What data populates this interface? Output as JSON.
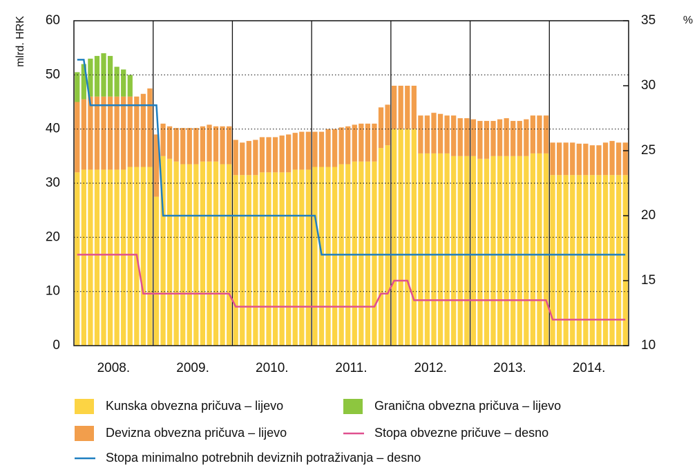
{
  "chart_data": {
    "type": "bar",
    "ylabel": "mlrd. HRK",
    "y2label": "%",
    "categories": [
      null,
      null,
      null,
      null,
      null,
      null,
      "2008.",
      null,
      null,
      null,
      null,
      null,
      null,
      null,
      null,
      null,
      null,
      null,
      "2009.",
      null,
      null,
      null,
      null,
      null,
      null,
      null,
      null,
      null,
      null,
      null,
      "2010.",
      null,
      null,
      null,
      null,
      null,
      null,
      null,
      null,
      null,
      null,
      null,
      "2011.",
      null,
      null,
      null,
      null,
      null,
      null,
      null,
      null,
      null,
      null,
      null,
      "2012.",
      null,
      null,
      null,
      null,
      null,
      null,
      null,
      null,
      null,
      null,
      null,
      "2013.",
      null,
      null,
      null,
      null,
      null,
      null,
      null,
      null,
      null,
      null,
      null,
      "2014.",
      null,
      null,
      null,
      null,
      null
    ],
    "ylim": [
      0,
      60
    ],
    "yticks": [
      0,
      10,
      20,
      30,
      40,
      50,
      60
    ],
    "y2lim": [
      10,
      35
    ],
    "y2ticks": [
      10,
      15,
      20,
      25,
      30,
      35
    ],
    "grid": true,
    "series": [
      {
        "name": "Kunska obvezna pričuva – lijevo",
        "color": "#fcd444",
        "kind": "bar",
        "values": [
          32,
          32.5,
          32.5,
          32.5,
          32.5,
          32.5,
          32.5,
          32.5,
          33,
          33,
          33,
          33,
          27.5,
          35,
          34.5,
          34,
          33.5,
          33.5,
          33.5,
          34,
          34,
          34,
          33.5,
          33.5,
          31.5,
          31.5,
          31.5,
          31.5,
          32,
          32,
          32,
          32,
          32,
          32.5,
          32.5,
          32.5,
          33,
          33,
          33,
          33,
          33.5,
          33.5,
          34,
          34,
          34,
          34,
          36.5,
          37,
          40,
          40,
          40,
          40,
          35.5,
          35.5,
          35.5,
          35.5,
          35.5,
          35,
          35,
          35,
          35,
          34.5,
          34.5,
          35,
          35,
          35,
          35,
          35,
          35,
          35.5,
          35.5,
          35.5,
          31.5,
          31.5,
          31.5,
          31.5,
          31.5,
          31.5,
          31.5,
          31.5,
          31.5,
          31.5,
          31.5,
          31.5
        ]
      },
      {
        "name": "Devizna obvezna pričuva  – lijevo",
        "color": "#f29e4c",
        "kind": "bar",
        "values": [
          13,
          13,
          13.5,
          13.5,
          13.5,
          13.5,
          13.5,
          13.5,
          13,
          13,
          13.5,
          14.5,
          11.5,
          6,
          6,
          6.2,
          6.7,
          6.7,
          6.7,
          6.5,
          6.8,
          6.5,
          7,
          7,
          6.5,
          6,
          6.3,
          6.5,
          6.5,
          6.5,
          6.5,
          6.8,
          7,
          6.8,
          7,
          7,
          6.5,
          6.5,
          7,
          7,
          6.8,
          7,
          6.8,
          7,
          7,
          7,
          7.5,
          7.5,
          8,
          8,
          8,
          8,
          7,
          7,
          7.5,
          7.3,
          7,
          7.5,
          7,
          7,
          6.8,
          7,
          7,
          6.5,
          6.8,
          7,
          6.5,
          6.5,
          6.8,
          7,
          7,
          7,
          6,
          6,
          6,
          6,
          5.8,
          5.8,
          5.5,
          5.5,
          6,
          6.3,
          6,
          6
        ]
      },
      {
        "name": "Granična obvezna pričuva – lijevo",
        "color": "#8dc63f",
        "kind": "bar",
        "values": [
          5.5,
          6.5,
          7,
          7.5,
          8,
          7.5,
          5.5,
          5,
          4,
          null,
          null,
          null,
          null,
          null,
          null,
          null,
          null,
          null,
          null,
          null,
          null,
          null,
          null,
          null,
          null,
          null,
          null,
          null,
          null,
          null,
          null,
          null,
          null,
          null,
          null,
          null,
          null,
          null,
          null,
          null,
          null,
          null,
          null,
          null,
          null,
          null,
          null,
          null,
          null,
          null,
          null,
          null,
          null,
          null,
          null,
          null,
          null,
          null,
          null,
          null,
          null,
          null,
          null,
          null,
          null,
          null,
          null,
          null,
          null,
          null,
          null,
          null,
          null,
          null,
          null,
          null,
          null,
          null,
          null,
          null,
          null,
          null,
          null,
          null
        ]
      },
      {
        "name": "Stopa obvezne pričuve – desno",
        "color": "#e0508f",
        "kind": "line",
        "axis": "y2",
        "values": [
          17,
          17,
          17,
          17,
          17,
          17,
          17,
          17,
          17,
          17,
          14,
          14,
          14,
          14,
          14,
          14,
          14,
          14,
          14,
          14,
          14,
          14,
          14,
          14,
          13,
          13,
          13,
          13,
          13,
          13,
          13,
          13,
          13,
          13,
          13,
          13,
          13,
          13,
          13,
          13,
          13,
          13,
          13,
          13,
          13,
          13,
          14,
          14,
          15,
          15,
          15,
          13.5,
          13.5,
          13.5,
          13.5,
          13.5,
          13.5,
          13.5,
          13.5,
          13.5,
          13.5,
          13.5,
          13.5,
          13.5,
          13.5,
          13.5,
          13.5,
          13.5,
          13.5,
          13.5,
          13.5,
          13.5,
          12,
          12,
          12,
          12,
          12,
          12,
          12,
          12,
          12,
          12,
          12,
          12
        ]
      },
      {
        "name": "Stopa minimalno potrebnih deviznih potraživanja – desno",
        "color": "#1f7fc0",
        "kind": "line",
        "axis": "y2",
        "values": [
          32,
          32,
          28.5,
          28.5,
          28.5,
          28.5,
          28.5,
          28.5,
          28.5,
          28.5,
          28.5,
          28.5,
          28.5,
          20,
          20,
          20,
          20,
          20,
          20,
          20,
          20,
          20,
          20,
          20,
          20,
          20,
          20,
          20,
          20,
          20,
          20,
          20,
          20,
          20,
          20,
          20,
          20,
          17,
          17,
          17,
          17,
          17,
          17,
          17,
          17,
          17,
          17,
          17,
          17,
          17,
          17,
          17,
          17,
          17,
          17,
          17,
          17,
          17,
          17,
          17,
          17,
          17,
          17,
          17,
          17,
          17,
          17,
          17,
          17,
          17,
          17,
          17,
          17,
          17,
          17,
          17,
          17,
          17,
          17,
          17,
          17,
          17,
          17,
          17
        ]
      }
    ]
  }
}
